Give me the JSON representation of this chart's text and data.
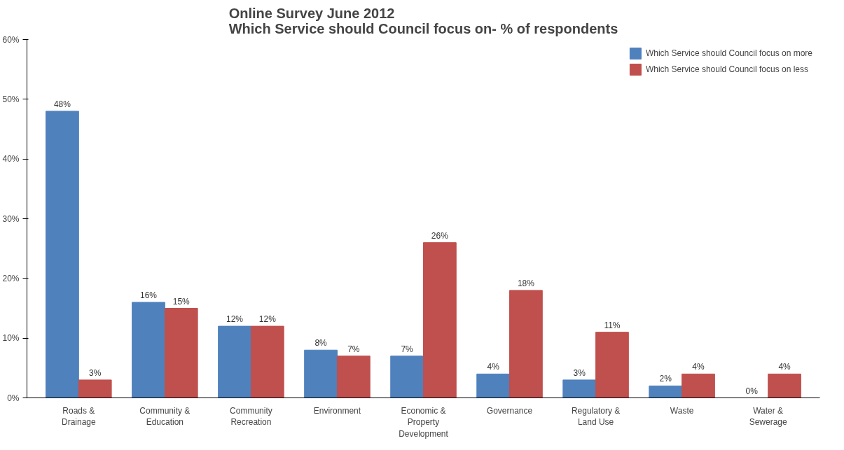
{
  "chart_data": {
    "type": "bar",
    "title": "Online Survey June 2012\nWhich Service should Council focus on- % of respondents",
    "categories": [
      "Roads & Drainage",
      "Community & Education",
      "Community Recreation",
      "Environment",
      "Economic & Property Development",
      "Governance",
      "Regulatory & Land Use",
      "Waste",
      "Water & Sewerage"
    ],
    "series": [
      {
        "name": "Which Service should Council focus on more",
        "color": "#4f81bd",
        "values": [
          48,
          16,
          12,
          8,
          7,
          4,
          3,
          2,
          0
        ],
        "value_labels": [
          "48%",
          "16%",
          "12%",
          "8%",
          "7%",
          "4%",
          "3%",
          "2%",
          "0%"
        ]
      },
      {
        "name": "Which Service should Council focus on less",
        "color": "#c0504d",
        "values": [
          3,
          15,
          12,
          7,
          26,
          18,
          11,
          4,
          4
        ],
        "value_labels": [
          "3%",
          "15%",
          "12%",
          "7%",
          "26%",
          "18%",
          "11%",
          "4%",
          "4%"
        ]
      }
    ],
    "ylim": [
      0,
      60
    ],
    "yticks": [
      {
        "value": 0,
        "label": "0%"
      },
      {
        "value": 10,
        "label": "10%"
      },
      {
        "value": 20,
        "label": "20%"
      },
      {
        "value": 30,
        "label": "30%"
      },
      {
        "value": 40,
        "label": "40%"
      },
      {
        "value": 50,
        "label": "50%"
      },
      {
        "value": 60,
        "label": "60%"
      }
    ],
    "grid": false,
    "legend": "top right"
  }
}
